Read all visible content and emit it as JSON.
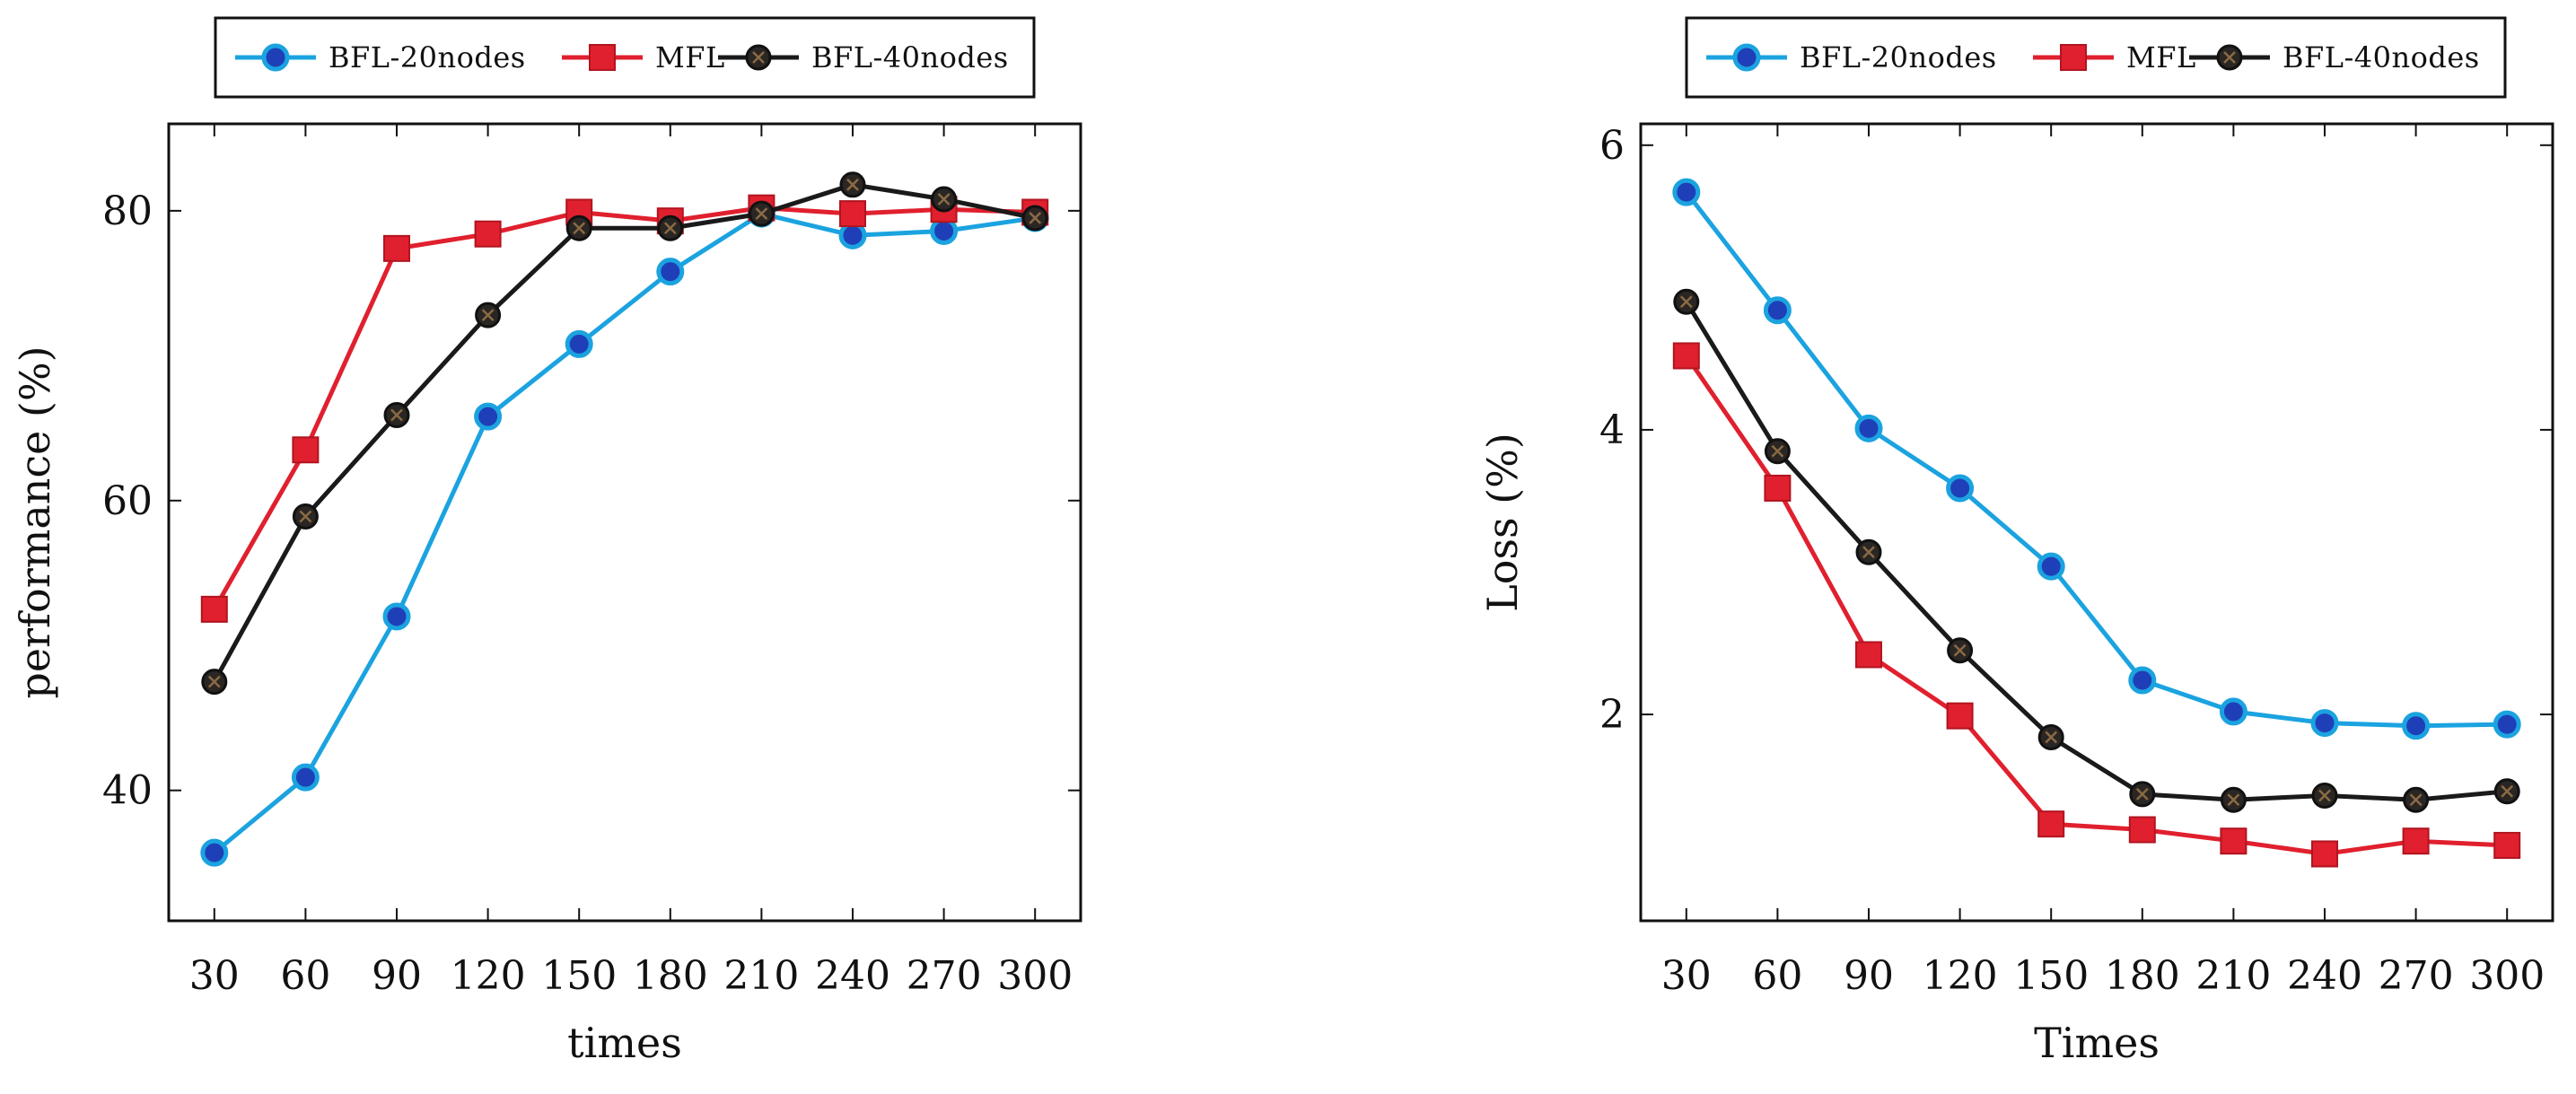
{
  "chart_data": [
    {
      "type": "line",
      "title": "",
      "xlabel": "times",
      "ylabel": "performance (%)",
      "categories": [
        "30",
        "60",
        "90",
        "120",
        "150",
        "180",
        "210",
        "240",
        "270",
        "300"
      ],
      "x": [
        30,
        60,
        90,
        120,
        150,
        180,
        210,
        240,
        270,
        300
      ],
      "xlim": [
        15,
        315
      ],
      "ylim": [
        31,
        86
      ],
      "yticks": [
        40,
        60,
        80
      ],
      "ytick_labels": [
        "40",
        "60",
        "80"
      ],
      "legend": {
        "position": "top-center-outside",
        "entries": [
          "BFL-20nodes",
          "MFL",
          "BFL-40nodes"
        ]
      },
      "grid": false,
      "series": [
        {
          "name": "BFL-20nodes",
          "color": "#1ba3e0",
          "marker": "circle",
          "values": [
            35.7,
            40.9,
            52.0,
            65.8,
            70.8,
            75.8,
            79.8,
            78.3,
            78.6,
            79.5
          ]
        },
        {
          "name": "MFL",
          "color": "#e0202e",
          "marker": "square",
          "values": [
            52.5,
            63.5,
            77.4,
            78.4,
            79.9,
            79.3,
            80.2,
            79.8,
            80.1,
            79.9
          ]
        },
        {
          "name": "BFL-40nodes",
          "color": "#1a1a1a",
          "marker": "circle-x",
          "values": [
            47.5,
            58.9,
            65.9,
            72.8,
            78.8,
            78.8,
            79.8,
            81.8,
            80.8,
            79.5
          ]
        }
      ]
    },
    {
      "type": "line",
      "title": "",
      "xlabel": "Times",
      "ylabel": "Loss (%)",
      "categories": [
        "30",
        "60",
        "90",
        "120",
        "150",
        "180",
        "210",
        "240",
        "270",
        "300"
      ],
      "x": [
        30,
        60,
        90,
        120,
        150,
        180,
        210,
        240,
        270,
        300
      ],
      "xlim": [
        15,
        315
      ],
      "ylim": [
        0.55,
        6.15
      ],
      "yticks": [
        2,
        4,
        6
      ],
      "ytick_labels": [
        "2",
        "4",
        "6"
      ],
      "legend": {
        "position": "top-center-outside",
        "entries": [
          "BFL-20nodes",
          "MFL",
          "BFL-40nodes"
        ]
      },
      "grid": false,
      "series": [
        {
          "name": "BFL-20nodes",
          "color": "#1ba3e0",
          "marker": "circle",
          "values": [
            5.67,
            4.84,
            4.01,
            3.59,
            3.04,
            2.24,
            2.02,
            1.94,
            1.92,
            1.93
          ]
        },
        {
          "name": "MFL",
          "color": "#e0202e",
          "marker": "square",
          "values": [
            4.52,
            3.59,
            2.42,
            1.99,
            1.23,
            1.19,
            1.11,
            1.02,
            1.11,
            1.08
          ]
        },
        {
          "name": "BFL-40nodes",
          "color": "#1a1a1a",
          "marker": "circle-x",
          "values": [
            4.9,
            3.85,
            3.14,
            2.45,
            1.84,
            1.44,
            1.4,
            1.43,
            1.4,
            1.46
          ]
        }
      ]
    }
  ]
}
